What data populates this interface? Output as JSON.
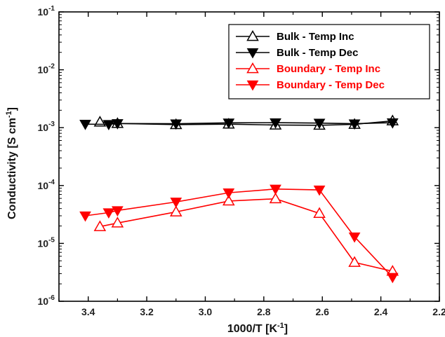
{
  "chart_data": {
    "type": "line",
    "xlabel": "1000/T [K",
    "xlabel_sup": "-1",
    "xlabel_end": "]",
    "ylabel": "Conductivity [S cm",
    "ylabel_sup": "-1",
    "ylabel_end": "]",
    "x_reversed": true,
    "xlim": [
      3.5,
      2.2
    ],
    "y_scale": "log",
    "ylim": [
      1e-06,
      0.1
    ],
    "x_ticks": [
      3.4,
      3.2,
      3.0,
      2.8,
      2.6,
      2.4,
      2.2
    ],
    "x_tick_labels": [
      "3.4",
      "3.2",
      "3.0",
      "2.8",
      "2.6",
      "2.4",
      "2.2"
    ],
    "y_ticks": [
      {
        "value": 0.1,
        "base": "10",
        "exp": "-1"
      },
      {
        "value": 0.01,
        "base": "10",
        "exp": "-2"
      },
      {
        "value": 0.001,
        "base": "10",
        "exp": "-3"
      },
      {
        "value": 0.0001,
        "base": "10",
        "exp": "-4"
      },
      {
        "value": 1e-05,
        "base": "10",
        "exp": "-5"
      },
      {
        "value": 1e-06,
        "base": "10",
        "exp": "-6"
      }
    ],
    "legend_position": "top-right",
    "series": [
      {
        "name": "Bulk - Temp Inc",
        "color": "#000000",
        "marker": "triangle-up-open",
        "x": [
          3.36,
          3.3,
          3.1,
          2.92,
          2.76,
          2.61,
          2.49,
          2.36
        ],
        "y": [
          0.00125,
          0.00118,
          0.00113,
          0.00115,
          0.00111,
          0.0011,
          0.00114,
          0.00131
        ]
      },
      {
        "name": "Bulk - Temp Dec",
        "color": "#000000",
        "marker": "triangle-down-filled",
        "x": [
          3.41,
          3.33,
          3.3,
          3.1,
          2.92,
          2.76,
          2.61,
          2.49,
          2.36
        ],
        "y": [
          0.00115,
          0.00114,
          0.00118,
          0.00117,
          0.00121,
          0.00122,
          0.0012,
          0.00117,
          0.00122
        ]
      },
      {
        "name": "Boundary - Temp Inc",
        "color": "#ff0000",
        "marker": "triangle-up-open",
        "x": [
          3.36,
          3.3,
          3.1,
          2.92,
          2.76,
          2.61,
          2.49,
          2.36
        ],
        "y": [
          1.95e-05,
          2.25e-05,
          3.5e-05,
          5.4e-05,
          5.9e-05,
          3.3e-05,
          4.7e-06,
          3.3e-06
        ]
      },
      {
        "name": "Boundary - Temp Dec",
        "color": "#ff0000",
        "marker": "triangle-down-filled",
        "x": [
          3.41,
          3.33,
          3.3,
          3.1,
          2.92,
          2.76,
          2.61,
          2.49,
          2.36
        ],
        "y": [
          3e-05,
          3.4e-05,
          3.7e-05,
          5.2e-05,
          7.5e-05,
          8.7e-05,
          8.4e-05,
          1.3e-05,
          2.6e-06
        ]
      }
    ]
  }
}
